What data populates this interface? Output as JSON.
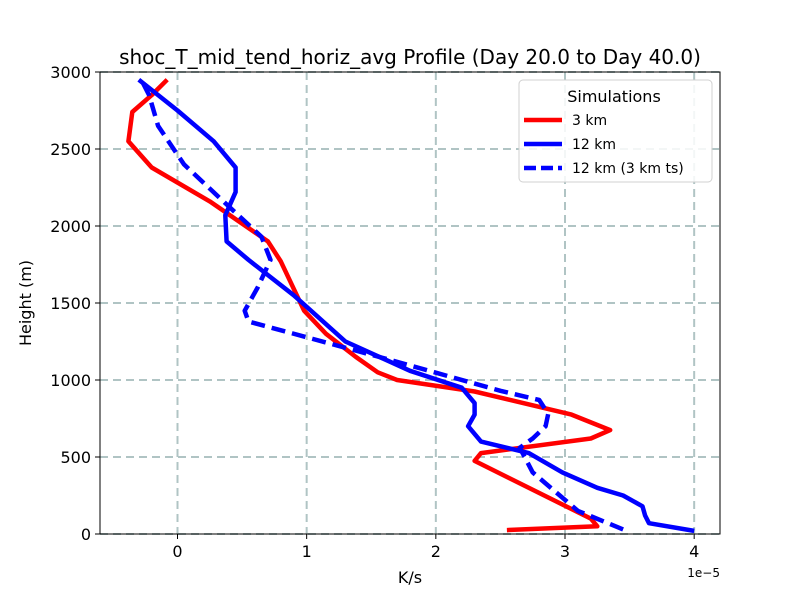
{
  "chart_data": {
    "type": "line",
    "title": "shoc_T_mid_tend_horiz_avg Profile (Day 20.0 to Day 40.0)",
    "xlabel": "K/s",
    "ylabel": "Height (m)",
    "x_offset_label": "1e−5",
    "x_scale_factor": 1e-05,
    "xlim": [
      -0.6,
      4.2
    ],
    "ylim": [
      0,
      3000
    ],
    "xticks": [
      0,
      1,
      2,
      3,
      4
    ],
    "xtick_labels": [
      "0",
      "1",
      "2",
      "3",
      "4"
    ],
    "yticks": [
      0,
      500,
      1000,
      1500,
      2000,
      2500,
      3000
    ],
    "ytick_labels": [
      "0",
      "500",
      "1000",
      "1500",
      "2000",
      "2500",
      "3000"
    ],
    "grid": true,
    "legend": {
      "title": "Simulations",
      "placement": "top-right"
    },
    "series": [
      {
        "name": "3 km",
        "color": "#ff0000",
        "style": "solid",
        "points": [
          [
            2.55,
            25
          ],
          [
            3.25,
            50
          ],
          [
            3.2,
            100
          ],
          [
            2.6,
            350
          ],
          [
            2.3,
            475
          ],
          [
            2.35,
            525
          ],
          [
            3.2,
            620
          ],
          [
            3.35,
            675
          ],
          [
            3.05,
            775
          ],
          [
            2.3,
            925
          ],
          [
            1.7,
            1000
          ],
          [
            1.55,
            1050
          ],
          [
            1.38,
            1150
          ],
          [
            1.15,
            1300
          ],
          [
            0.98,
            1450
          ],
          [
            0.8,
            1770
          ],
          [
            0.7,
            1900
          ],
          [
            0.25,
            2160
          ],
          [
            -0.2,
            2380
          ],
          [
            -0.38,
            2550
          ],
          [
            -0.35,
            2740
          ],
          [
            -0.2,
            2850
          ],
          [
            -0.08,
            2950
          ]
        ]
      },
      {
        "name": "12 km",
        "color": "#0000ff",
        "style": "solid",
        "points": [
          [
            4.0,
            20
          ],
          [
            3.65,
            70
          ],
          [
            3.62,
            120
          ],
          [
            3.6,
            180
          ],
          [
            3.45,
            250
          ],
          [
            3.25,
            300
          ],
          [
            2.98,
            400
          ],
          [
            2.72,
            525
          ],
          [
            2.35,
            600
          ],
          [
            2.25,
            700
          ],
          [
            2.3,
            775
          ],
          [
            2.3,
            850
          ],
          [
            2.2,
            950
          ],
          [
            1.8,
            1060
          ],
          [
            1.3,
            1250
          ],
          [
            0.9,
            1550
          ],
          [
            0.55,
            1780
          ],
          [
            0.38,
            1900
          ],
          [
            0.37,
            2070
          ],
          [
            0.45,
            2220
          ],
          [
            0.45,
            2380
          ],
          [
            0.28,
            2550
          ],
          [
            0.0,
            2750
          ],
          [
            -0.3,
            2950
          ]
        ]
      },
      {
        "name": "12 km (3 km ts)",
        "color": "#0000ff",
        "style": "dashed",
        "points": [
          [
            3.45,
            30
          ],
          [
            3.1,
            150
          ],
          [
            2.75,
            400
          ],
          [
            2.65,
            560
          ],
          [
            2.75,
            620
          ],
          [
            2.85,
            700
          ],
          [
            2.87,
            780
          ],
          [
            2.8,
            870
          ],
          [
            2.5,
            930
          ],
          [
            1.65,
            1130
          ],
          [
            0.55,
            1380
          ],
          [
            0.52,
            1450
          ],
          [
            0.62,
            1600
          ],
          [
            0.72,
            1780
          ],
          [
            0.65,
            1930
          ],
          [
            0.38,
            2140
          ],
          [
            0.05,
            2400
          ],
          [
            -0.15,
            2650
          ],
          [
            -0.22,
            2850
          ],
          [
            -0.28,
            2950
          ]
        ]
      }
    ]
  }
}
